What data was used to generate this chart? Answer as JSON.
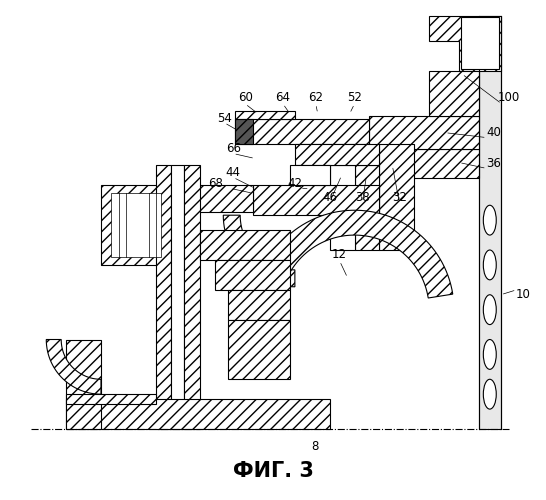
{
  "title": "ФИГ. 3",
  "title_fontsize": 15,
  "background_color": "#ffffff",
  "line_color": "#000000",
  "fig_width": 5.46,
  "fig_height": 5.0,
  "dpi": 100
}
